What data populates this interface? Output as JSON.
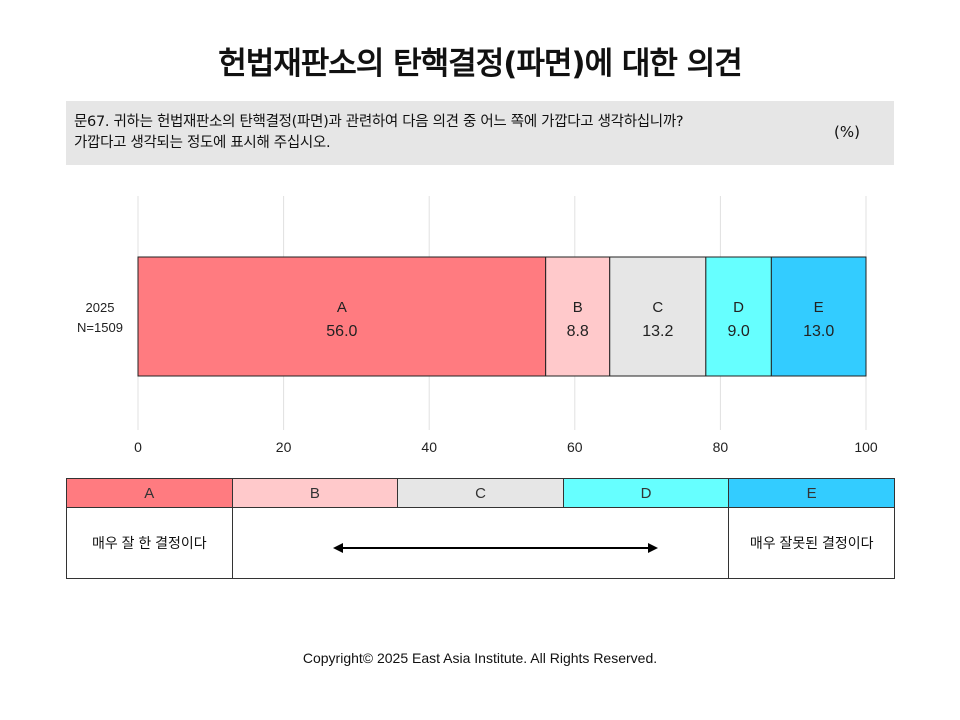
{
  "title": "헌법재판소의 탄핵결정(파면)에 대한 의견",
  "question": {
    "text_line1": "문67. 귀하는 헌법재판소의 탄핵결정(파면)과 관련하여 다음 의견 중 어느 쪽에 가깝다고 생각하십니까?",
    "text_line2": "가깝다고 생각되는 정도에 표시해 주십시오.",
    "unit": "(%)"
  },
  "colors": {
    "A": "#ff7b80",
    "B": "#ffc9cb",
    "C": "#e6e6e6",
    "D": "#66ffff",
    "E": "#33ccff",
    "grid": "#e0e0e0"
  },
  "chart_data": {
    "type": "bar",
    "orientation": "horizontal",
    "stacked": true,
    "categories": [
      "2025\nN=1509"
    ],
    "category_lines": [
      "2025",
      "N=1509"
    ],
    "xlim": [
      0,
      100
    ],
    "xticks": [
      0,
      20,
      40,
      60,
      80,
      100
    ],
    "grid": true,
    "series": [
      {
        "name": "A",
        "values": [
          56.0
        ]
      },
      {
        "name": "B",
        "values": [
          8.8
        ]
      },
      {
        "name": "C",
        "values": [
          13.2
        ]
      },
      {
        "name": "D",
        "values": [
          9.0
        ]
      },
      {
        "name": "E",
        "values": [
          13.0
        ]
      }
    ]
  },
  "legend": {
    "headers": [
      "A",
      "B",
      "C",
      "D",
      "E"
    ],
    "left_desc": "매우 잘 한 결정이다",
    "right_desc": "매우 잘못된 결정이다"
  },
  "copyright": "Copyright© 2025 East Asia Institute. All Rights Reserved."
}
